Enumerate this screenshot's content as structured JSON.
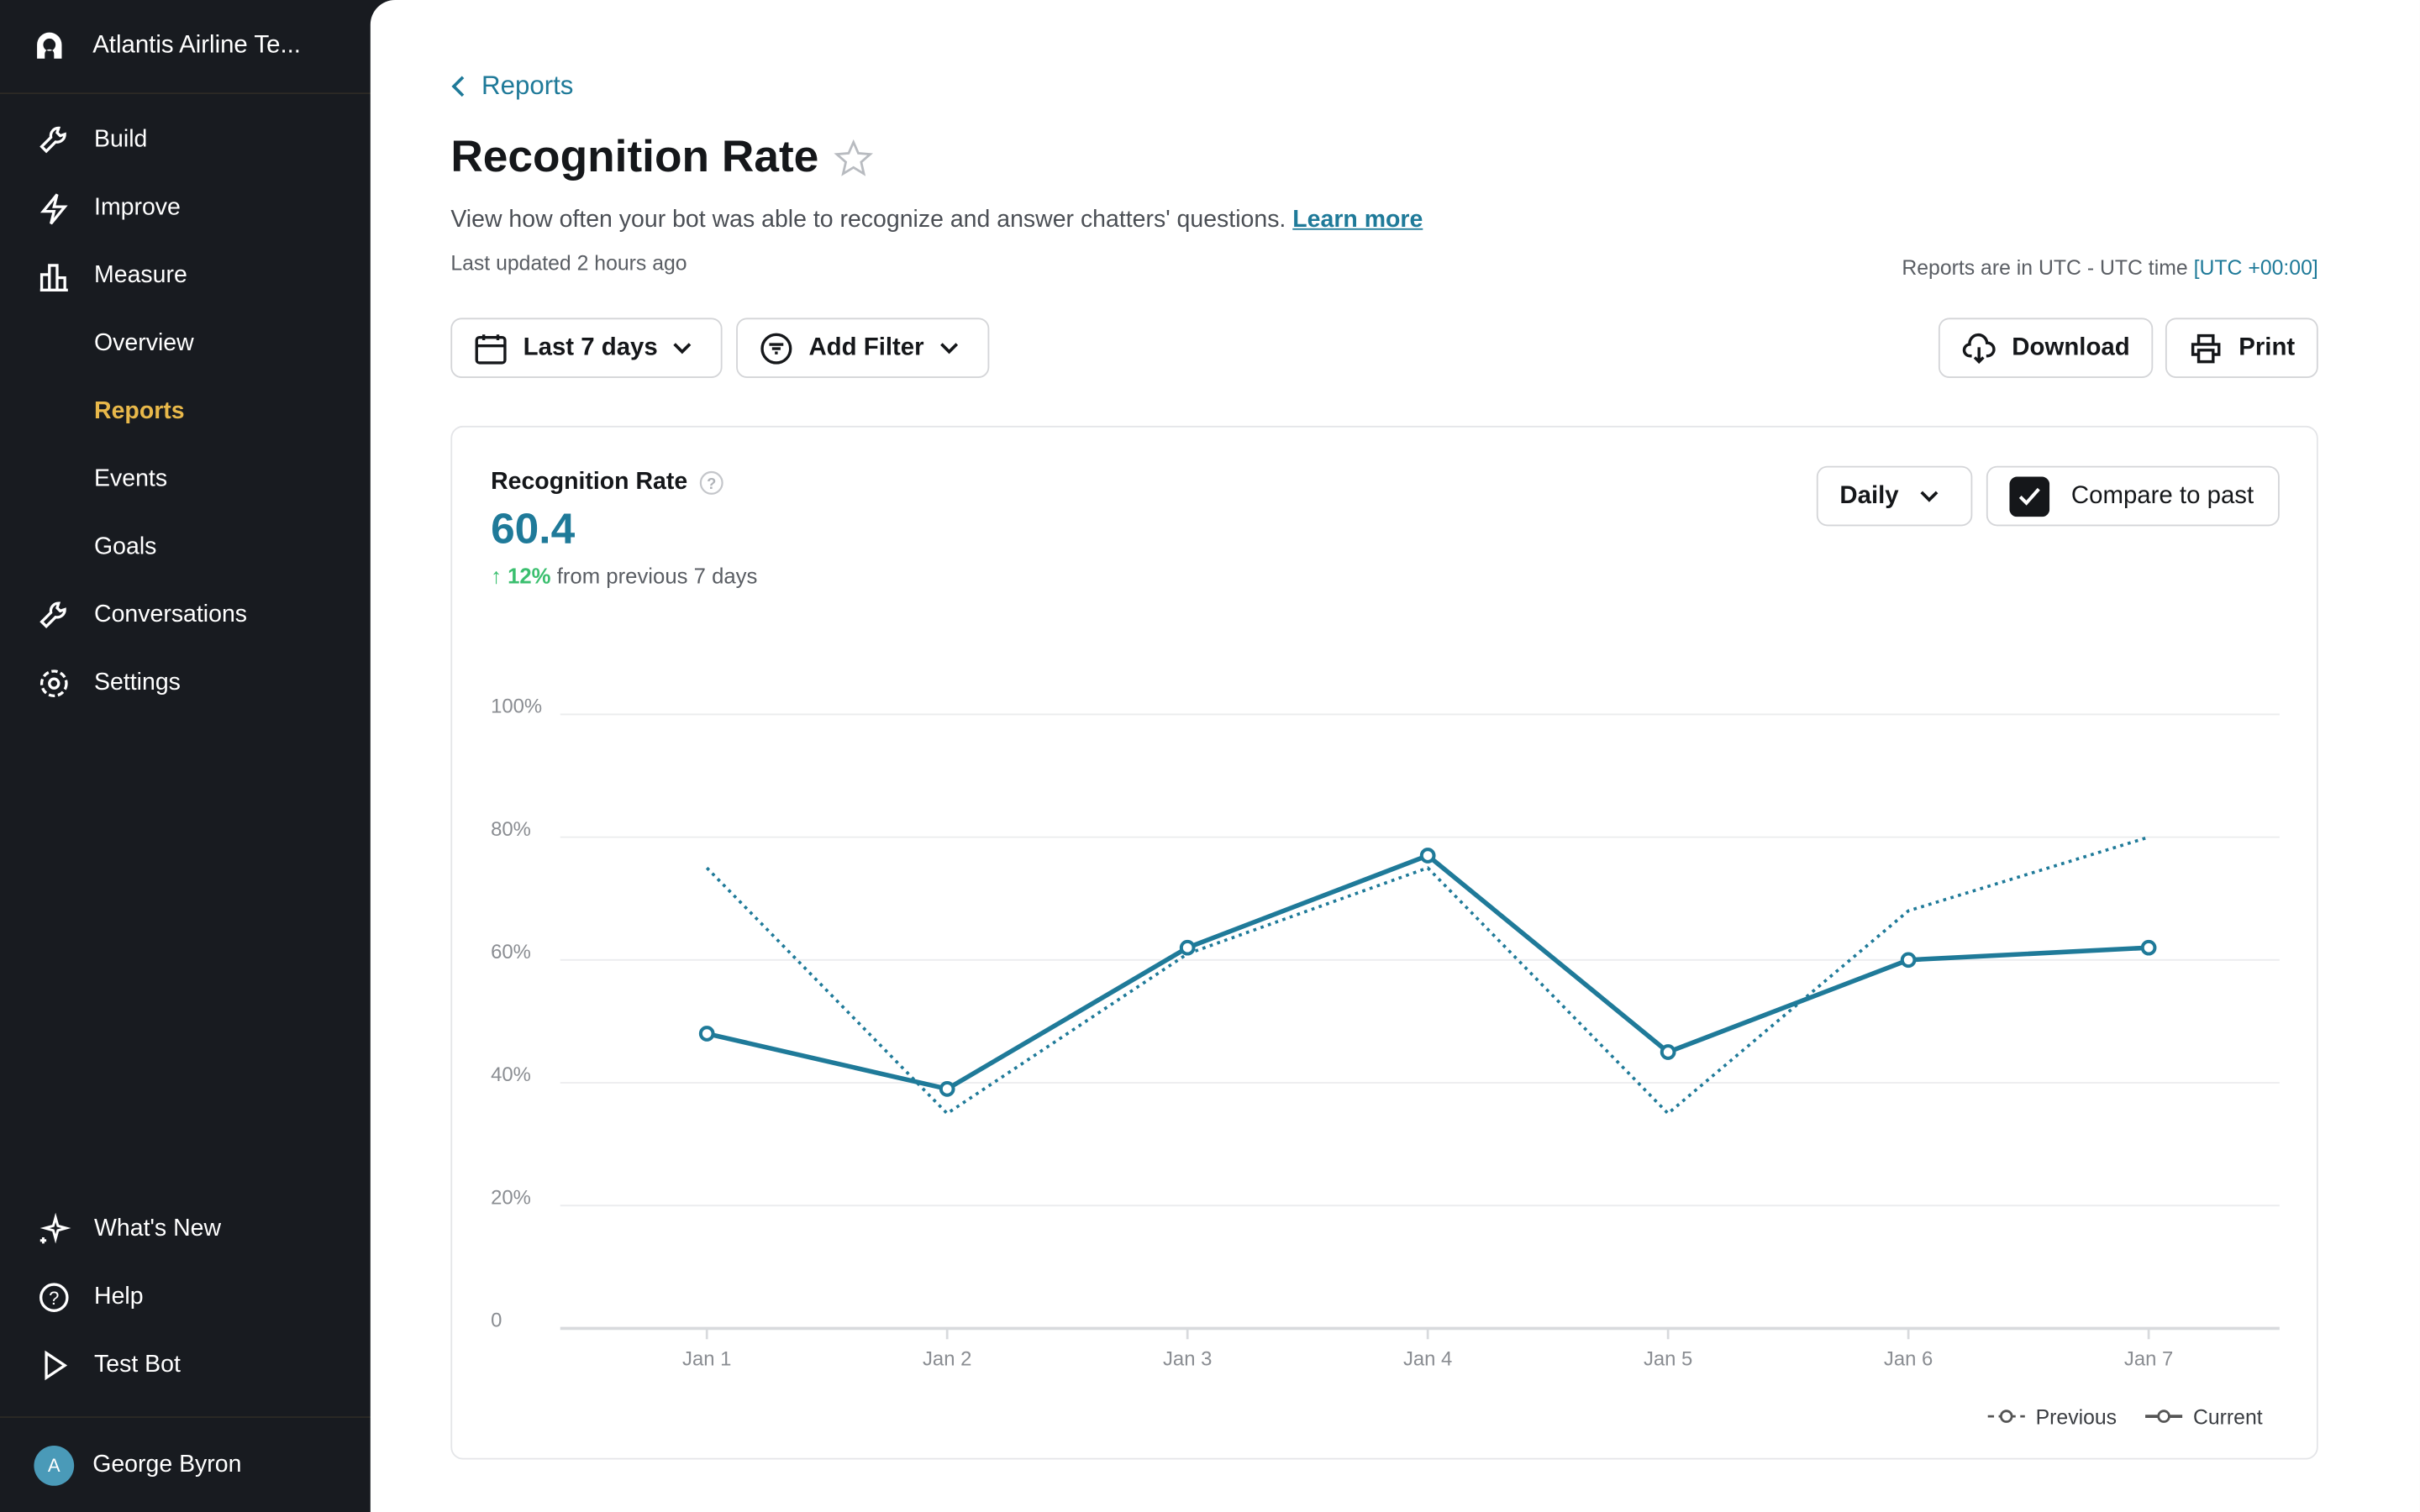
{
  "sidebar": {
    "workspace": "Atlantis Airline Te...",
    "items": [
      {
        "label": "Build",
        "icon": "wrench-icon"
      },
      {
        "label": "Improve",
        "icon": "lightning-icon"
      },
      {
        "label": "Measure",
        "icon": "bar-chart-icon"
      },
      {
        "label": "Overview"
      },
      {
        "label": "Reports",
        "active": true
      },
      {
        "label": "Events"
      },
      {
        "label": "Goals"
      },
      {
        "label": "Conversations",
        "icon": "wrench-icon"
      },
      {
        "label": "Settings",
        "icon": "gear-icon"
      }
    ],
    "bottom": [
      {
        "label": "What's New",
        "icon": "sparkle-icon"
      },
      {
        "label": "Help",
        "icon": "help-icon"
      },
      {
        "label": "Test Bot",
        "icon": "play-icon"
      }
    ],
    "user": {
      "initial": "A",
      "name": "George Byron"
    }
  },
  "header": {
    "breadcrumb": "Reports",
    "title": "Recognition Rate",
    "description": "View how often your bot was able to recognize and answer chatters' questions.",
    "learn_more": "Learn more",
    "last_updated": "Last updated 2 hours ago",
    "utc_note": "Reports are in UTC - UTC time",
    "utc_offset": "[UTC +00:00]"
  },
  "toolbar": {
    "date_range": "Last 7 days",
    "add_filter": "Add Filter",
    "download": "Download",
    "print": "Print"
  },
  "card": {
    "title": "Recognition Rate",
    "value": "60.4",
    "delta": "12%",
    "delta_text": "from previous 7 days",
    "interval": "Daily",
    "compare_label": "Compare to past",
    "compare_checked": true
  },
  "colors": {
    "accent": "#1f7a99",
    "active_nav": "#e8b84a",
    "positive": "#3bbf6f"
  },
  "chart_data": {
    "type": "line",
    "categories": [
      "Jan 1",
      "Jan 2",
      "Jan 3",
      "Jan 4",
      "Jan 5",
      "Jan 6",
      "Jan 7"
    ],
    "yticks": [
      "0",
      "20%",
      "40%",
      "60%",
      "80%",
      "100%"
    ],
    "ylim": [
      0,
      100
    ],
    "grid": true,
    "legend_position": "bottom-right",
    "series": [
      {
        "name": "Previous",
        "style": "dotted",
        "markers": false,
        "values": [
          75,
          35,
          61,
          75,
          35,
          68,
          80
        ]
      },
      {
        "name": "Current",
        "style": "solid",
        "markers": true,
        "values": [
          48,
          39,
          62,
          77,
          45,
          60,
          62
        ]
      }
    ]
  }
}
